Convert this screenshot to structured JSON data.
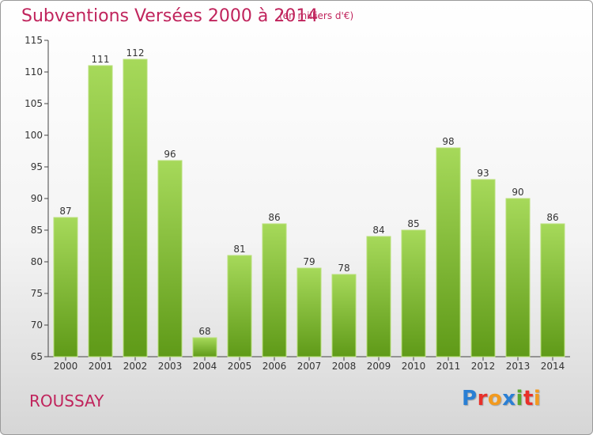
{
  "header": {
    "title": "Subventions Versées 2000 à 2014",
    "unit_note": "(en milliers d'€)"
  },
  "footer": {
    "commune": "ROUSSAY",
    "logo_text": "Proxiti"
  },
  "colors": {
    "title": "#c0245c",
    "bar_top": "#a6d95a",
    "bar_bottom": "#5f9a18",
    "axis": "#444444"
  },
  "chart_data": {
    "type": "bar",
    "title": "Subventions Versées 2000 à 2014",
    "subtitle": "(en milliers d'€)",
    "xlabel": "",
    "ylabel": "",
    "categories": [
      "2000",
      "2001",
      "2002",
      "2003",
      "2004",
      "2005",
      "2006",
      "2007",
      "2008",
      "2009",
      "2010",
      "2011",
      "2012",
      "2013",
      "2014"
    ],
    "values": [
      87,
      111,
      112,
      96,
      68,
      81,
      86,
      79,
      78,
      84,
      85,
      98,
      93,
      90,
      86
    ],
    "ylim": [
      65,
      115
    ],
    "yticks": [
      65,
      70,
      75,
      80,
      85,
      90,
      95,
      100,
      105,
      110,
      115
    ],
    "grid": false,
    "legend": "none"
  }
}
